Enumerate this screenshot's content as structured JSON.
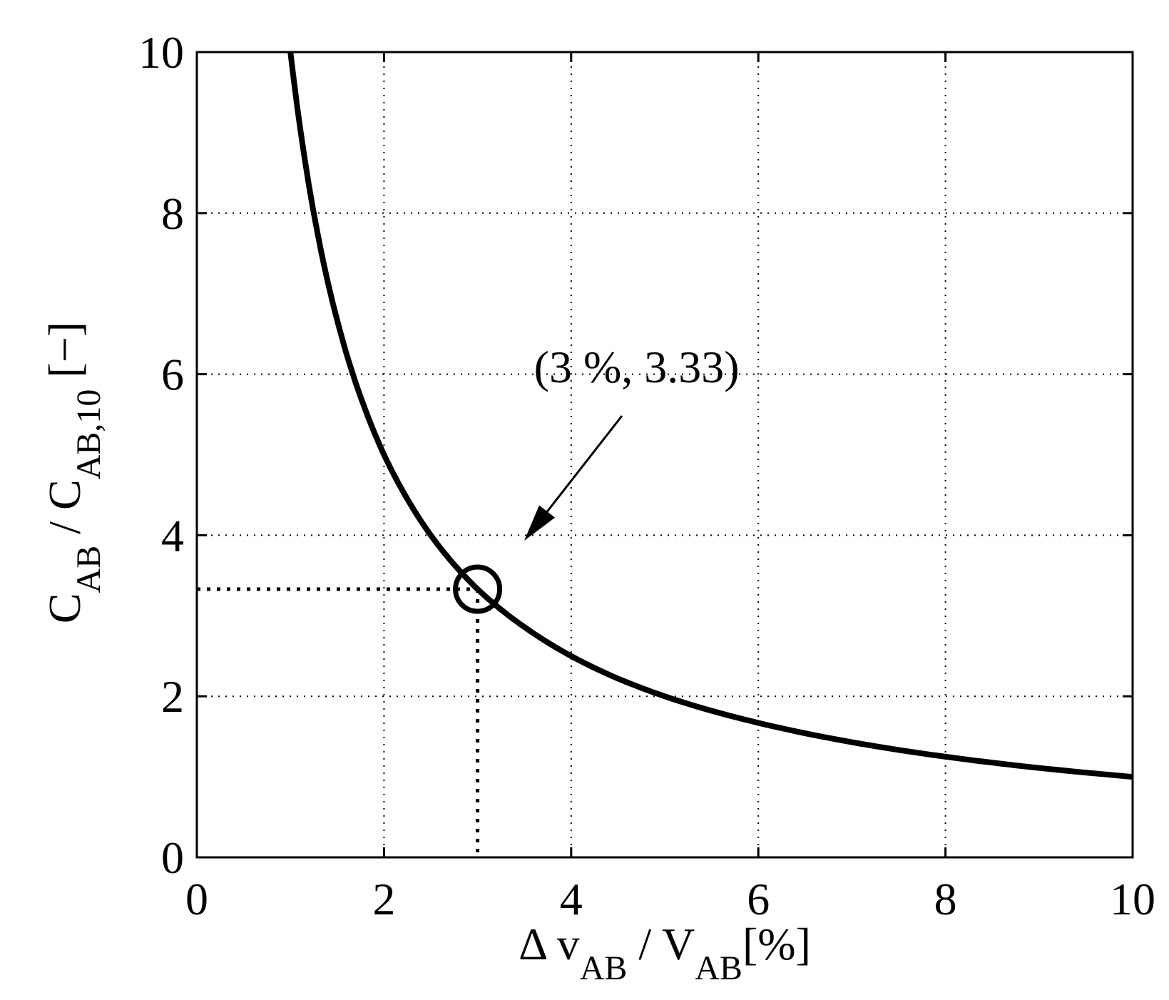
{
  "chart_data": {
    "type": "line",
    "title": "",
    "xlabel": {
      "parts": [
        {
          "text": "Δ v",
          "sub": false
        },
        {
          "text": "AB",
          "sub": true
        },
        {
          "text": " / V",
          "sub": false
        },
        {
          "text": "AB",
          "sub": true
        },
        {
          "text": "[%]",
          "sub": false
        }
      ]
    },
    "ylabel": {
      "parts": [
        {
          "text": "C",
          "sub": false
        },
        {
          "text": "AB",
          "sub": true
        },
        {
          "text": " / C",
          "sub": false
        },
        {
          "text": "AB,10",
          "sub": true
        },
        {
          "text": "  [−]",
          "sub": false
        }
      ]
    },
    "xlim": [
      0,
      10
    ],
    "ylim": [
      0,
      10
    ],
    "xticks": [
      "0",
      "2",
      "4",
      "6",
      "8",
      "10"
    ],
    "yticks": [
      "0",
      "2",
      "4",
      "6",
      "8",
      "10"
    ],
    "grid": true,
    "curve": {
      "x": [
        1.0,
        1.1,
        1.2,
        1.3,
        1.4,
        1.5,
        1.6,
        1.8,
        2.0,
        2.2,
        2.5,
        2.8,
        3.0,
        3.5,
        4.0,
        4.5,
        5.0,
        6.0,
        7.0,
        8.0,
        9.0,
        10.0
      ],
      "y": [
        10.0,
        9.09,
        8.33,
        7.69,
        7.14,
        6.67,
        6.25,
        5.56,
        5.0,
        4.55,
        4.0,
        3.57,
        3.33,
        2.86,
        2.5,
        2.22,
        2.0,
        1.67,
        1.43,
        1.25,
        1.11,
        1.0
      ]
    },
    "marker": {
      "x": 3,
      "y": 3.33
    },
    "annotation": {
      "text": "(3 %, 3.33)",
      "x": 4.7,
      "y": 5.9
    }
  }
}
